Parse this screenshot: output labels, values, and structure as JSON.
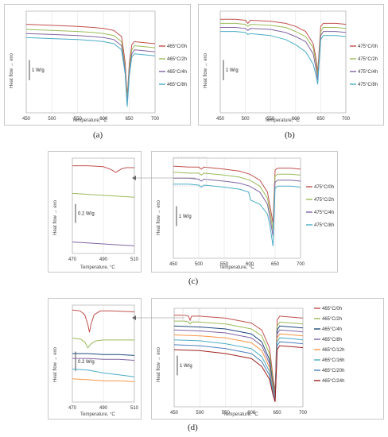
{
  "captions": [
    "(a)",
    "(b)",
    "(c)",
    "(d)"
  ],
  "axis_labels": {
    "y": "Heat flow → exo",
    "x": "Temperature, °C"
  },
  "colors": {
    "red": "#c0504d",
    "green": "#9bbb59",
    "purple": "#8064a2",
    "cyan": "#4bacc6",
    "orange": "#f79646",
    "blue": "#4f81bd",
    "navy": "#1f497d",
    "darkred": "#a02020"
  },
  "chart_data": [
    {
      "id": "a",
      "type": "line",
      "xlim": [
        450,
        700
      ],
      "xticks": [
        450,
        500,
        550,
        600,
        650,
        700
      ],
      "ylim": [
        0,
        100
      ],
      "xlabel": "Temperature, °C",
      "ylabel": "Heat flow → exo",
      "scale_bar": "1 W/g",
      "legend_position": "right",
      "series": [
        {
          "name": "465°C/0h",
          "color": "#c0504d",
          "x": [
            450,
            500,
            550,
            580,
            600,
            620,
            635,
            642,
            646,
            650,
            655,
            660,
            680,
            700
          ],
          "y": [
            87,
            86,
            85,
            84,
            83,
            81,
            75,
            50,
            15,
            48,
            67,
            70,
            69,
            68
          ]
        },
        {
          "name": "465°C/2h",
          "color": "#9bbb59",
          "x": [
            450,
            500,
            550,
            580,
            600,
            620,
            635,
            642,
            646,
            650,
            655,
            660,
            680,
            700
          ],
          "y": [
            82,
            81,
            80,
            79,
            78,
            76,
            70,
            45,
            12,
            44,
            62,
            66,
            65,
            64
          ]
        },
        {
          "name": "465°C/4h",
          "color": "#8064a2",
          "x": [
            450,
            500,
            550,
            580,
            600,
            620,
            635,
            642,
            646,
            650,
            655,
            660,
            680,
            700
          ],
          "y": [
            78,
            77,
            76,
            75,
            74,
            72,
            66,
            42,
            9,
            40,
            58,
            62,
            61,
            60
          ]
        },
        {
          "name": "465°C/8h",
          "color": "#4bacc6",
          "x": [
            450,
            500,
            550,
            580,
            600,
            620,
            635,
            642,
            646,
            650,
            655,
            660,
            680,
            700
          ],
          "y": [
            74,
            73,
            72,
            71,
            70,
            68,
            62,
            38,
            6,
            36,
            55,
            58,
            57,
            56
          ]
        }
      ]
    },
    {
      "id": "b",
      "type": "line",
      "xlim": [
        450,
        700
      ],
      "xticks": [
        450,
        500,
        550,
        600,
        650,
        700
      ],
      "ylim": [
        0,
        100
      ],
      "xlabel": "Temperature, °C",
      "ylabel": "Heat flow → exo",
      "scale_bar": "1 W/g",
      "legend_position": "right",
      "series": [
        {
          "name": "475°C/0h",
          "color": "#c0504d",
          "x": [
            450,
            480,
            500,
            505,
            510,
            550,
            580,
            600,
            620,
            635,
            640,
            644,
            650,
            655,
            680,
            700
          ],
          "y": [
            92,
            92,
            91,
            88,
            91,
            90,
            88,
            85,
            80,
            68,
            55,
            40,
            85,
            88,
            88,
            87
          ]
        },
        {
          "name": "475°C/2h",
          "color": "#9bbb59",
          "x": [
            450,
            480,
            500,
            505,
            510,
            550,
            580,
            600,
            620,
            635,
            640,
            644,
            650,
            655,
            680,
            700
          ],
          "y": [
            88,
            88,
            87,
            85,
            87,
            86,
            84,
            80,
            75,
            64,
            50,
            36,
            80,
            84,
            84,
            83
          ]
        },
        {
          "name": "475°C/4h",
          "color": "#8064a2",
          "x": [
            450,
            480,
            500,
            505,
            510,
            550,
            580,
            600,
            620,
            635,
            640,
            644,
            650,
            655,
            680,
            700
          ],
          "y": [
            84,
            84,
            83,
            81,
            83,
            82,
            79,
            75,
            70,
            58,
            45,
            32,
            76,
            80,
            80,
            79
          ]
        },
        {
          "name": "475°C/8h",
          "color": "#4bacc6",
          "x": [
            450,
            480,
            500,
            505,
            510,
            550,
            580,
            600,
            620,
            635,
            640,
            644,
            650,
            655,
            680,
            700
          ],
          "y": [
            80,
            80,
            79,
            77,
            78,
            76,
            72,
            67,
            60,
            48,
            38,
            28,
            72,
            76,
            76,
            75
          ]
        }
      ]
    },
    {
      "id": "c-inset",
      "type": "line",
      "xlim": [
        470,
        510
      ],
      "xticks": [
        470,
        490,
        510
      ],
      "ylim": [
        0,
        100
      ],
      "xlabel": "Temperature, °C",
      "ylabel": "Heat flow → exo",
      "scale_bar": "0.2 W/g",
      "series": [
        {
          "name": "475°C/0h",
          "color": "#c0504d",
          "x": [
            470,
            480,
            490,
            495,
            498,
            500,
            502,
            505,
            510
          ],
          "y": [
            92,
            92,
            91,
            88,
            85,
            87,
            89,
            90,
            90
          ]
        },
        {
          "name": "475°C/2h",
          "color": "#9bbb59",
          "x": [
            470,
            480,
            490,
            500,
            510
          ],
          "y": [
            63,
            62,
            61,
            60,
            59
          ]
        },
        {
          "name": "475°C/4h",
          "color": "#8064a2",
          "x": [
            470,
            480,
            490,
            500,
            510
          ],
          "y": [
            12,
            11,
            10,
            9,
            8
          ]
        }
      ]
    },
    {
      "id": "c",
      "type": "line",
      "xlim": [
        450,
        700
      ],
      "xticks": [
        450,
        500,
        550,
        600,
        650,
        700
      ],
      "ylim": [
        0,
        100
      ],
      "xlabel": "Temperature, °C",
      "ylabel": "Heat flow → exo",
      "scale_bar": "1 W/g",
      "legend_position": "right",
      "series": [
        {
          "name": "475°C/0h",
          "color": "#c0504d",
          "x": [
            450,
            480,
            500,
            505,
            510,
            550,
            580,
            600,
            620,
            635,
            640,
            646,
            650,
            655,
            680,
            700
          ],
          "y": [
            92,
            91,
            91,
            89,
            91,
            89,
            87,
            84,
            78,
            66,
            52,
            35,
            88,
            90,
            90,
            89
          ]
        },
        {
          "name": "475°C/2h",
          "color": "#9bbb59",
          "x": [
            450,
            480,
            500,
            505,
            510,
            550,
            580,
            600,
            620,
            635,
            640,
            646,
            650,
            655,
            680,
            700
          ],
          "y": [
            86,
            85,
            85,
            83,
            85,
            83,
            81,
            78,
            72,
            60,
            46,
            28,
            82,
            84,
            84,
            83
          ]
        },
        {
          "name": "475°C/4h",
          "color": "#8064a2",
          "x": [
            450,
            480,
            500,
            505,
            510,
            550,
            580,
            600,
            620,
            635,
            640,
            646,
            650,
            655,
            680,
            700
          ],
          "y": [
            80,
            80,
            79,
            77,
            79,
            77,
            75,
            72,
            66,
            54,
            40,
            22,
            76,
            78,
            78,
            77
          ]
        },
        {
          "name": "475°C/8h",
          "color": "#4bacc6",
          "x": [
            450,
            480,
            500,
            505,
            510,
            550,
            580,
            598,
            602,
            620,
            635,
            640,
            646,
            650,
            655,
            680,
            700
          ],
          "y": [
            74,
            74,
            73,
            71,
            73,
            71,
            69,
            66,
            58,
            54,
            44,
            32,
            12,
            70,
            72,
            72,
            71
          ]
        }
      ]
    },
    {
      "id": "d-inset",
      "type": "line",
      "xlim": [
        470,
        510
      ],
      "xticks": [
        470,
        490,
        510
      ],
      "ylim": [
        0,
        100
      ],
      "xlabel": "Temperature, °C",
      "ylabel": "Heat flow → exo",
      "scale_bar": "0.2 W/g",
      "series": [
        {
          "name": "465°C/0h",
          "color": "#c0504d",
          "x": [
            470,
            475,
            478,
            480,
            481,
            482,
            484,
            488,
            495,
            510
          ],
          "y": [
            95,
            94,
            90,
            80,
            72,
            80,
            90,
            94,
            94,
            93
          ]
        },
        {
          "name": "465°C/2h",
          "color": "#9bbb59",
          "x": [
            470,
            475,
            478,
            480,
            482,
            485,
            490,
            500,
            510
          ],
          "y": [
            66,
            65,
            62,
            56,
            60,
            63,
            64,
            64,
            64
          ]
        },
        {
          "name": "465°C/4h",
          "color": "#1f497d",
          "x": [
            470,
            480,
            490,
            500,
            510
          ],
          "y": [
            50,
            50,
            49,
            49,
            48
          ]
        },
        {
          "name": "465°C/8h",
          "color": "#8064a2",
          "x": [
            470,
            480,
            490,
            500,
            510
          ],
          "y": [
            45,
            45,
            44,
            44,
            43
          ]
        },
        {
          "name": "465°C/12h",
          "color": "#4bacc6",
          "x": [
            470,
            480,
            490,
            500,
            510
          ],
          "y": [
            34,
            33,
            30,
            28,
            26
          ]
        },
        {
          "name": "465°C/16h",
          "color": "#f79646",
          "x": [
            470,
            480,
            490,
            500,
            510
          ],
          "y": [
            24,
            23,
            22,
            22,
            21
          ]
        }
      ]
    },
    {
      "id": "d",
      "type": "line",
      "xlim": [
        450,
        700
      ],
      "xticks": [
        450,
        500,
        550,
        600,
        650,
        700
      ],
      "ylim": [
        0,
        100
      ],
      "xlabel": "Temperature, °C",
      "ylabel": "Heat flow → exo",
      "scale_bar": "1 W/g",
      "legend_position": "right",
      "series": [
        {
          "name": "465°C/0h",
          "color": "#c0504d",
          "x": [
            450,
            470,
            478,
            481,
            484,
            500,
            550,
            600,
            620,
            635,
            642,
            646,
            650,
            655,
            680,
            700
          ],
          "y": [
            93,
            93,
            92,
            88,
            92,
            92,
            90,
            85,
            78,
            60,
            30,
            15,
            88,
            92,
            91,
            90
          ]
        },
        {
          "name": "465°C/2h",
          "color": "#9bbb59",
          "x": [
            450,
            470,
            478,
            481,
            484,
            500,
            550,
            600,
            620,
            635,
            642,
            646,
            650,
            655,
            680,
            700
          ],
          "y": [
            87,
            87,
            86,
            84,
            86,
            86,
            84,
            79,
            72,
            54,
            26,
            12,
            82,
            86,
            85,
            84
          ]
        },
        {
          "name": "465°C/4h",
          "color": "#1f497d",
          "x": [
            450,
            500,
            550,
            600,
            620,
            635,
            642,
            646,
            650,
            655,
            680,
            700
          ],
          "y": [
            82,
            81,
            79,
            74,
            66,
            48,
            22,
            10,
            78,
            82,
            81,
            80
          ]
        },
        {
          "name": "465°C/8h",
          "color": "#8064a2",
          "x": [
            450,
            500,
            550,
            600,
            620,
            635,
            642,
            646,
            650,
            655,
            680,
            700
          ],
          "y": [
            78,
            77,
            75,
            70,
            62,
            44,
            20,
            9,
            74,
            78,
            77,
            76
          ]
        },
        {
          "name": "465°C/12h",
          "color": "#f79646",
          "x": [
            450,
            500,
            550,
            600,
            620,
            635,
            642,
            646,
            650,
            655,
            680,
            700
          ],
          "y": [
            73,
            72,
            70,
            65,
            57,
            40,
            18,
            8,
            70,
            74,
            73,
            72
          ]
        },
        {
          "name": "465°C/16h",
          "color": "#4bacc6",
          "x": [
            450,
            500,
            550,
            600,
            620,
            635,
            642,
            646,
            650,
            655,
            680,
            700
          ],
          "y": [
            68,
            67,
            64,
            59,
            51,
            36,
            16,
            7,
            66,
            70,
            69,
            68
          ]
        },
        {
          "name": "465°C/20h",
          "color": "#4f81bd",
          "x": [
            450,
            500,
            550,
            600,
            620,
            635,
            642,
            646,
            650,
            655,
            680,
            700
          ],
          "y": [
            63,
            62,
            59,
            54,
            46,
            32,
            14,
            6,
            62,
            66,
            65,
            64
          ]
        },
        {
          "name": "465°C/24h",
          "color": "#a02020",
          "x": [
            450,
            500,
            550,
            600,
            620,
            635,
            642,
            646,
            650,
            655,
            680,
            700
          ],
          "y": [
            58,
            57,
            54,
            49,
            41,
            28,
            12,
            5,
            58,
            62,
            61,
            60
          ]
        }
      ]
    }
  ]
}
